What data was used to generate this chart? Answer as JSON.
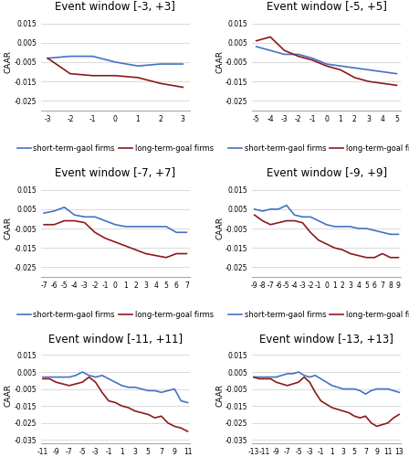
{
  "panels": [
    {
      "title": "Event window [-3, +3]",
      "x": [
        -3,
        -2,
        -1,
        0,
        1,
        2,
        3
      ],
      "short": [
        -0.003,
        -0.002,
        -0.002,
        -0.005,
        -0.007,
        -0.006,
        -0.006
      ],
      "long": [
        -0.003,
        -0.011,
        -0.012,
        -0.012,
        -0.013,
        -0.016,
        -0.018
      ],
      "ylim": [
        -0.03,
        0.02
      ],
      "yticks": [
        -0.025,
        -0.015,
        -0.005,
        0.005,
        0.015
      ],
      "xtick_step": 1
    },
    {
      "title": "Event window [-5, +5]",
      "x": [
        -5,
        -4,
        -3,
        -2,
        -1,
        0,
        1,
        2,
        3,
        4,
        5
      ],
      "short": [
        0.003,
        0.001,
        -0.001,
        -0.001,
        -0.003,
        -0.006,
        -0.007,
        -0.008,
        -0.009,
        -0.01,
        -0.011
      ],
      "long": [
        0.006,
        0.008,
        0.001,
        -0.002,
        -0.004,
        -0.007,
        -0.009,
        -0.013,
        -0.015,
        -0.016,
        -0.017
      ],
      "ylim": [
        -0.03,
        0.02
      ],
      "yticks": [
        -0.025,
        -0.015,
        -0.005,
        0.005,
        0.015
      ],
      "xtick_step": 1
    },
    {
      "title": "Event window [-7, +7]",
      "x": [
        -7,
        -6,
        -5,
        -4,
        -3,
        -2,
        -1,
        0,
        1,
        2,
        3,
        4,
        5,
        6,
        7
      ],
      "short": [
        0.003,
        0.004,
        0.006,
        0.002,
        0.001,
        0.001,
        -0.001,
        -0.003,
        -0.004,
        -0.004,
        -0.004,
        -0.004,
        -0.004,
        -0.007,
        -0.007
      ],
      "long": [
        -0.003,
        -0.003,
        -0.001,
        -0.001,
        -0.002,
        -0.007,
        -0.01,
        -0.012,
        -0.014,
        -0.016,
        -0.018,
        -0.019,
        -0.02,
        -0.018,
        -0.018
      ],
      "ylim": [
        -0.03,
        0.02
      ],
      "yticks": [
        -0.025,
        -0.015,
        -0.005,
        0.005,
        0.015
      ],
      "xtick_step": 1
    },
    {
      "title": "Event window [-9, +9]",
      "x": [
        -9,
        -8,
        -7,
        -6,
        -5,
        -4,
        -3,
        -2,
        -1,
        0,
        1,
        2,
        3,
        4,
        5,
        6,
        7,
        8,
        9
      ],
      "short": [
        0.005,
        0.004,
        0.005,
        0.005,
        0.007,
        0.002,
        0.001,
        0.001,
        -0.001,
        -0.003,
        -0.004,
        -0.004,
        -0.004,
        -0.005,
        -0.005,
        -0.006,
        -0.007,
        -0.008,
        -0.008
      ],
      "long": [
        0.002,
        -0.001,
        -0.003,
        -0.002,
        -0.001,
        -0.001,
        -0.002,
        -0.007,
        -0.011,
        -0.013,
        -0.015,
        -0.016,
        -0.018,
        -0.019,
        -0.02,
        -0.02,
        -0.018,
        -0.02,
        -0.02
      ],
      "ylim": [
        -0.03,
        0.02
      ],
      "yticks": [
        -0.025,
        -0.015,
        -0.005,
        0.005,
        0.015
      ],
      "xtick_step": 1
    },
    {
      "title": "Event window [-11, +11]",
      "x": [
        -11,
        -10,
        -9,
        -8,
        -7,
        -6,
        -5,
        -4,
        -3,
        -2,
        -1,
        0,
        1,
        2,
        3,
        4,
        5,
        6,
        7,
        8,
        9,
        10,
        11
      ],
      "short": [
        0.002,
        0.002,
        0.002,
        0.002,
        0.002,
        0.003,
        0.005,
        0.003,
        0.002,
        0.003,
        0.001,
        -0.001,
        -0.003,
        -0.004,
        -0.004,
        -0.005,
        -0.006,
        -0.006,
        -0.007,
        -0.006,
        -0.005,
        -0.012,
        -0.013
      ],
      "long": [
        0.001,
        0.001,
        -0.001,
        -0.002,
        -0.003,
        -0.002,
        -0.001,
        0.002,
        -0.001,
        -0.007,
        -0.012,
        -0.013,
        -0.015,
        -0.016,
        -0.018,
        -0.019,
        -0.02,
        -0.022,
        -0.021,
        -0.025,
        -0.027,
        -0.028,
        -0.03
      ],
      "ylim": [
        -0.037,
        0.02
      ],
      "yticks": [
        -0.035,
        -0.025,
        -0.015,
        -0.005,
        0.005,
        0.015
      ],
      "xtick_step": 2
    },
    {
      "title": "Event window [-13, +13]",
      "x": [
        -13,
        -12,
        -11,
        -10,
        -9,
        -8,
        -7,
        -6,
        -5,
        -4,
        -3,
        -2,
        -1,
        0,
        1,
        2,
        3,
        4,
        5,
        6,
        7,
        8,
        9,
        10,
        11,
        12,
        13
      ],
      "short": [
        0.002,
        0.002,
        0.002,
        0.002,
        0.002,
        0.003,
        0.004,
        0.004,
        0.005,
        0.003,
        0.002,
        0.003,
        0.001,
        -0.001,
        -0.003,
        -0.004,
        -0.005,
        -0.005,
        -0.005,
        -0.006,
        -0.008,
        -0.006,
        -0.005,
        -0.005,
        -0.005,
        -0.006,
        -0.007
      ],
      "long": [
        0.002,
        0.001,
        0.001,
        0.001,
        -0.001,
        -0.002,
        -0.003,
        -0.002,
        -0.001,
        0.002,
        -0.001,
        -0.007,
        -0.012,
        -0.014,
        -0.016,
        -0.017,
        -0.018,
        -0.019,
        -0.021,
        -0.022,
        -0.021,
        -0.025,
        -0.027,
        -0.026,
        -0.025,
        -0.022,
        -0.02
      ],
      "ylim": [
        -0.037,
        0.02
      ],
      "yticks": [
        -0.035,
        -0.025,
        -0.015,
        -0.005,
        0.005,
        0.015
      ],
      "xtick_step": 2
    }
  ],
  "short_color": "#4472c4",
  "long_color": "#8b1a1a",
  "short_label": "short-term-gaol firms",
  "long_label": "long-term-goal firms",
  "ylabel": "CAAR",
  "bg_color": "#ffffff",
  "grid_color": "#cccccc",
  "title_fontsize": 8.5,
  "label_fontsize": 6.5,
  "tick_fontsize": 5.5,
  "legend_fontsize": 6.0,
  "linewidth": 1.2
}
